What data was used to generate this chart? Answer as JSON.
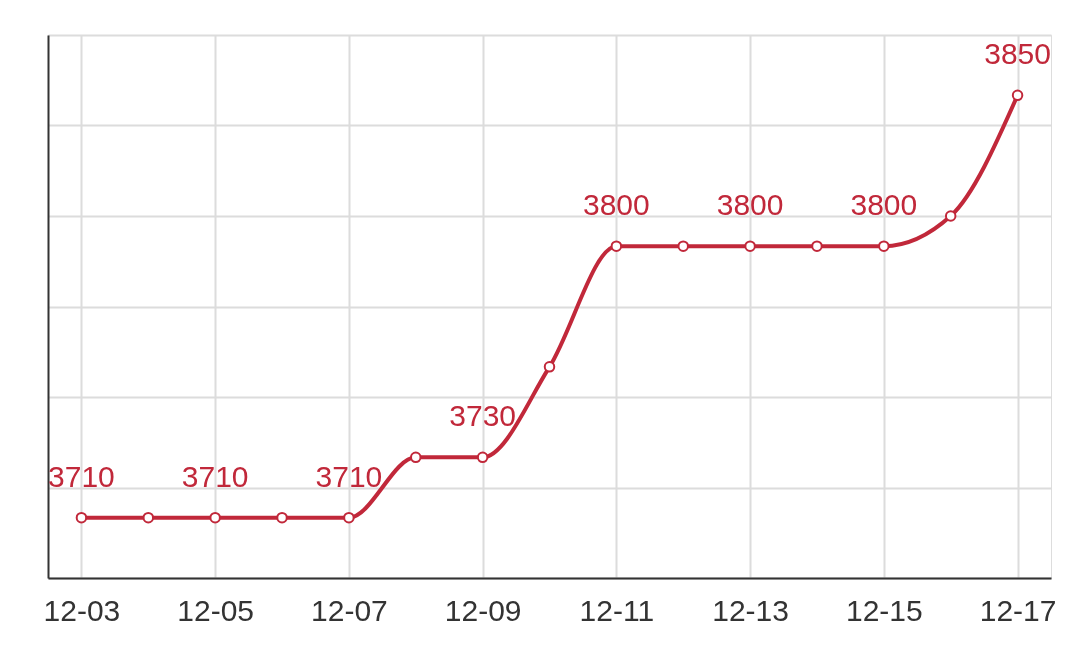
{
  "chart_data": {
    "type": "line",
    "categories": [
      "12-03",
      null,
      "12-05",
      null,
      "12-07",
      null,
      "12-09",
      null,
      "12-11",
      null,
      "12-13",
      null,
      "12-15",
      null,
      "12-17"
    ],
    "series": [
      {
        "color": "#c1283a",
        "values": [
          3710,
          3710,
          3710,
          3710,
          3710,
          3730,
          3730,
          3760,
          3800,
          3800,
          3800,
          3800,
          3800,
          3810,
          3850
        ],
        "value_labels": [
          "3710",
          null,
          "3710",
          null,
          "3710",
          null,
          "3730",
          null,
          "3800",
          null,
          "3800",
          null,
          "3800",
          null,
          "3850"
        ]
      }
    ],
    "ylim": [
      3690,
      3870
    ],
    "yticks": [
      {
        "value": 3690,
        "label": null
      },
      {
        "value": 3720,
        "label": null
      },
      {
        "value": 3750,
        "label": null
      },
      {
        "value": 3780,
        "label": null
      },
      {
        "value": 3810,
        "label": null
      },
      {
        "value": 3840,
        "label": null
      },
      {
        "value": 3870,
        "label": null
      }
    ],
    "tick_labels": "x",
    "grid": true,
    "marker": "circle",
    "line_style": "solid"
  }
}
